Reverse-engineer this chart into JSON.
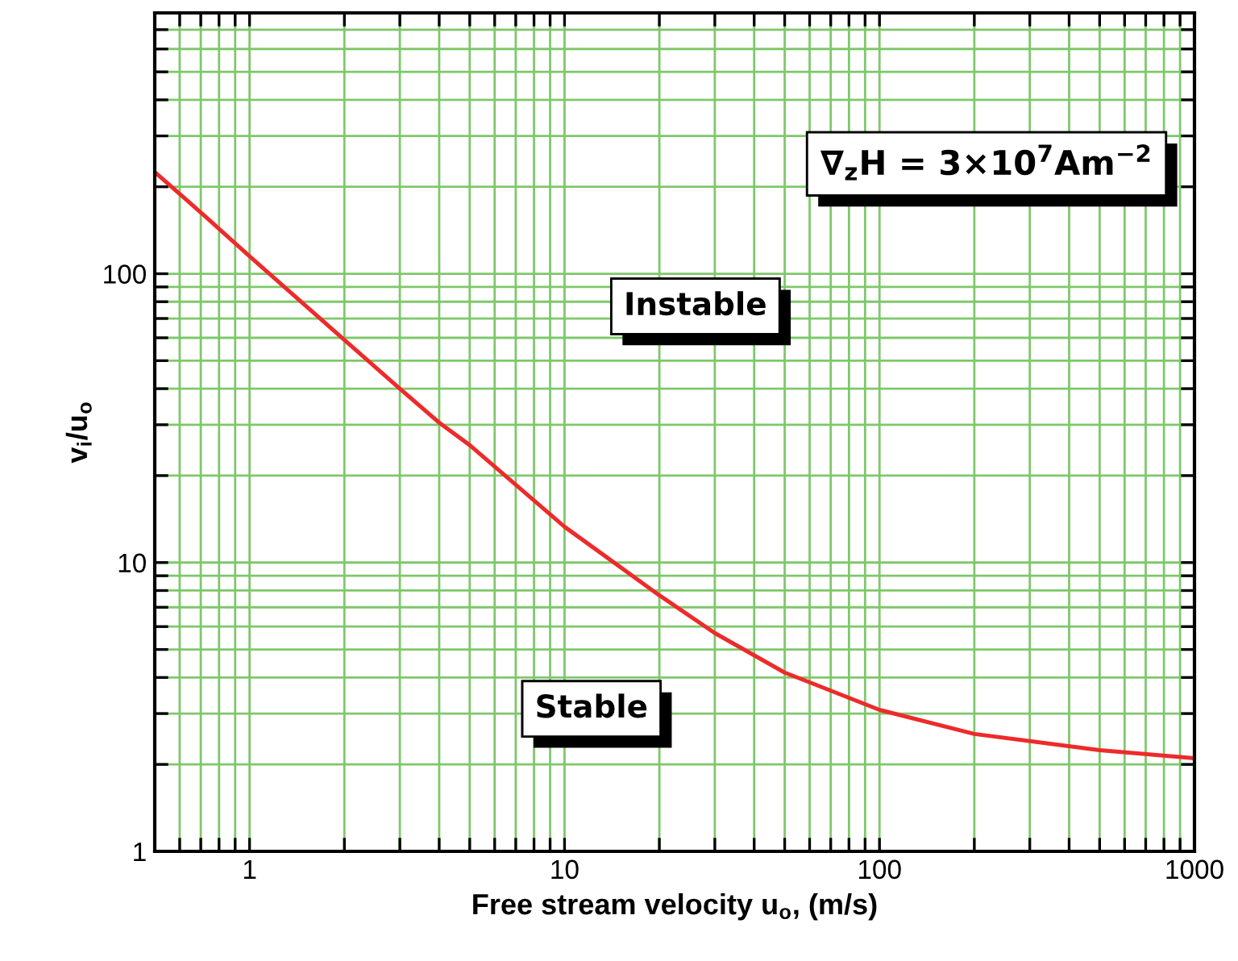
{
  "chart_data": {
    "type": "line",
    "xlabel": "Free stream velocity u$_{o}$, (m/s)",
    "ylabel": "v$_{i}$/u$_{o}$",
    "log": "xy",
    "grid": true,
    "marker": "none",
    "line_style": "solid",
    "xlim": [
      0.5,
      1000
    ],
    "ylim": [
      1,
      800
    ],
    "xticks": [
      {
        "value": 0.5,
        "label": null
      },
      {
        "value": 0.6,
        "label": null
      },
      {
        "value": 0.7,
        "label": null
      },
      {
        "value": 0.8,
        "label": null
      },
      {
        "value": 0.9,
        "label": null
      },
      1,
      {
        "value": 2,
        "label": null
      },
      {
        "value": 3,
        "label": null
      },
      {
        "value": 4,
        "label": null
      },
      {
        "value": 5,
        "label": null
      },
      {
        "value": 6,
        "label": null
      },
      {
        "value": 7,
        "label": null
      },
      {
        "value": 8,
        "label": null
      },
      {
        "value": 9,
        "label": null
      },
      10,
      {
        "value": 20,
        "label": null
      },
      {
        "value": 30,
        "label": null
      },
      {
        "value": 40,
        "label": null
      },
      {
        "value": 50,
        "label": null
      },
      {
        "value": 60,
        "label": null
      },
      {
        "value": 70,
        "label": null
      },
      {
        "value": 80,
        "label": null
      },
      {
        "value": 90,
        "label": null
      },
      100,
      {
        "value": 200,
        "label": null
      },
      {
        "value": 300,
        "label": null
      },
      {
        "value": 400,
        "label": null
      },
      {
        "value": 500,
        "label": null
      },
      {
        "value": 600,
        "label": null
      },
      {
        "value": 700,
        "label": null
      },
      {
        "value": 800,
        "label": null
      },
      {
        "value": 900,
        "label": null
      },
      1000
    ],
    "yticks": [
      1,
      {
        "value": 2,
        "label": null
      },
      {
        "value": 3,
        "label": null
      },
      {
        "value": 4,
        "label": null
      },
      {
        "value": 5,
        "label": null
      },
      {
        "value": 6,
        "label": null
      },
      {
        "value": 7,
        "label": null
      },
      {
        "value": 8,
        "label": null
      },
      {
        "value": 9,
        "label": null
      },
      10,
      {
        "value": 20,
        "label": null
      },
      {
        "value": 30,
        "label": null
      },
      {
        "value": 40,
        "label": null
      },
      {
        "value": 50,
        "label": null
      },
      {
        "value": 60,
        "label": null
      },
      {
        "value": 70,
        "label": null
      },
      {
        "value": 80,
        "label": null
      },
      {
        "value": 90,
        "label": null
      },
      100,
      {
        "value": 200,
        "label": null
      },
      {
        "value": 300,
        "label": null
      },
      {
        "value": 400,
        "label": null
      },
      {
        "value": 500,
        "label": null
      },
      {
        "value": 600,
        "label": null
      },
      {
        "value": 700,
        "label": null
      },
      {
        "value": 800,
        "label": null
      }
    ],
    "annotations": [
      "∇$_{z}$H = 3×10$^{7}$Am$^{−2}$",
      "Instable",
      "Stable"
    ],
    "series": [
      {
        "color": "#ee2a2a",
        "x": [
          0.5,
          0.7,
          1,
          2,
          3,
          4,
          5,
          10,
          20,
          30,
          50,
          100,
          200,
          500,
          1000
        ],
        "values": [
          225,
          163,
          115,
          59,
          40,
          30.5,
          25.5,
          13.3,
          7.7,
          5.7,
          4.16,
          3.09,
          2.55,
          2.24,
          2.1
        ]
      }
    ]
  }
}
